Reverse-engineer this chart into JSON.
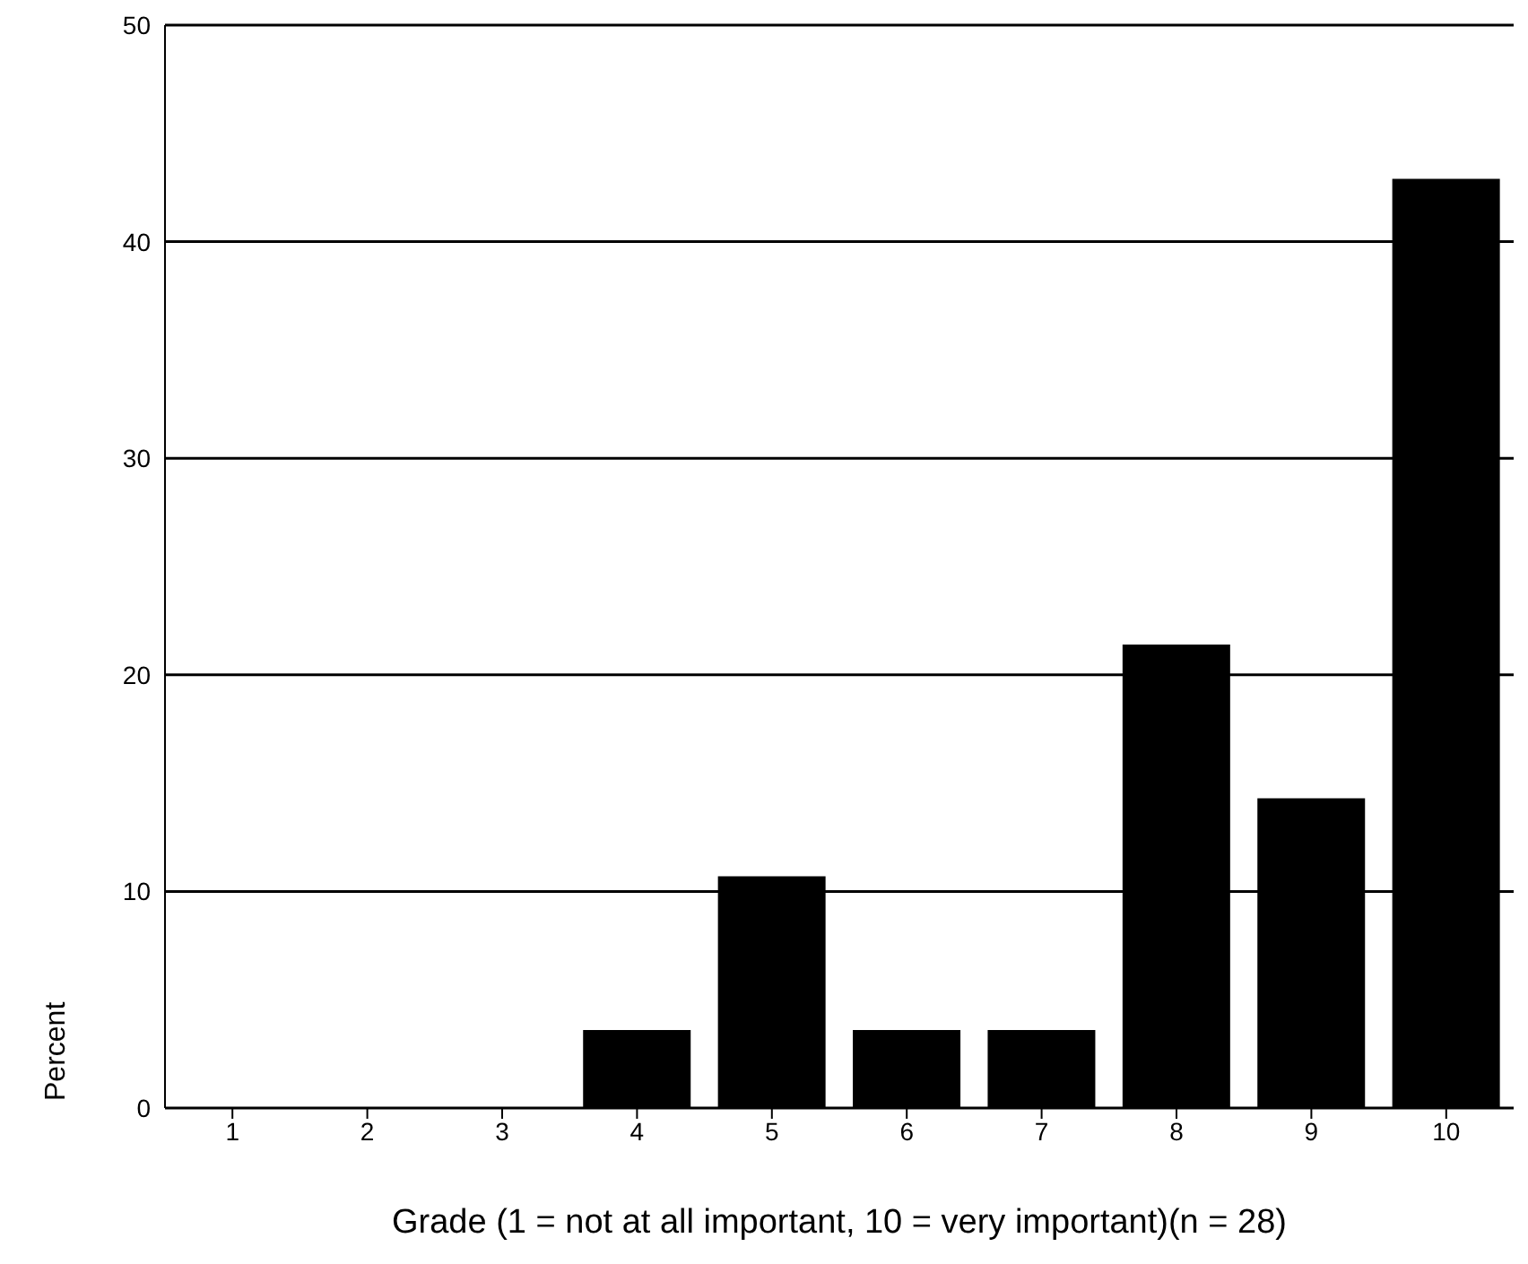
{
  "chart_data": {
    "type": "bar",
    "xlabel": "Grade (1 = not at all important, 10 = very important)(n = 28)",
    "ylabel": "Percent",
    "categories": [
      "1",
      "2",
      "3",
      "4",
      "5",
      "6",
      "7",
      "8",
      "9",
      "10"
    ],
    "values": [
      0,
      0,
      0,
      3.6,
      10.7,
      3.6,
      3.6,
      21.4,
      14.3,
      42.9
    ],
    "color": "#000000",
    "ylim": [
      0,
      50
    ],
    "yticks": [
      0,
      10,
      20,
      30,
      40,
      50
    ],
    "grid": "y"
  }
}
